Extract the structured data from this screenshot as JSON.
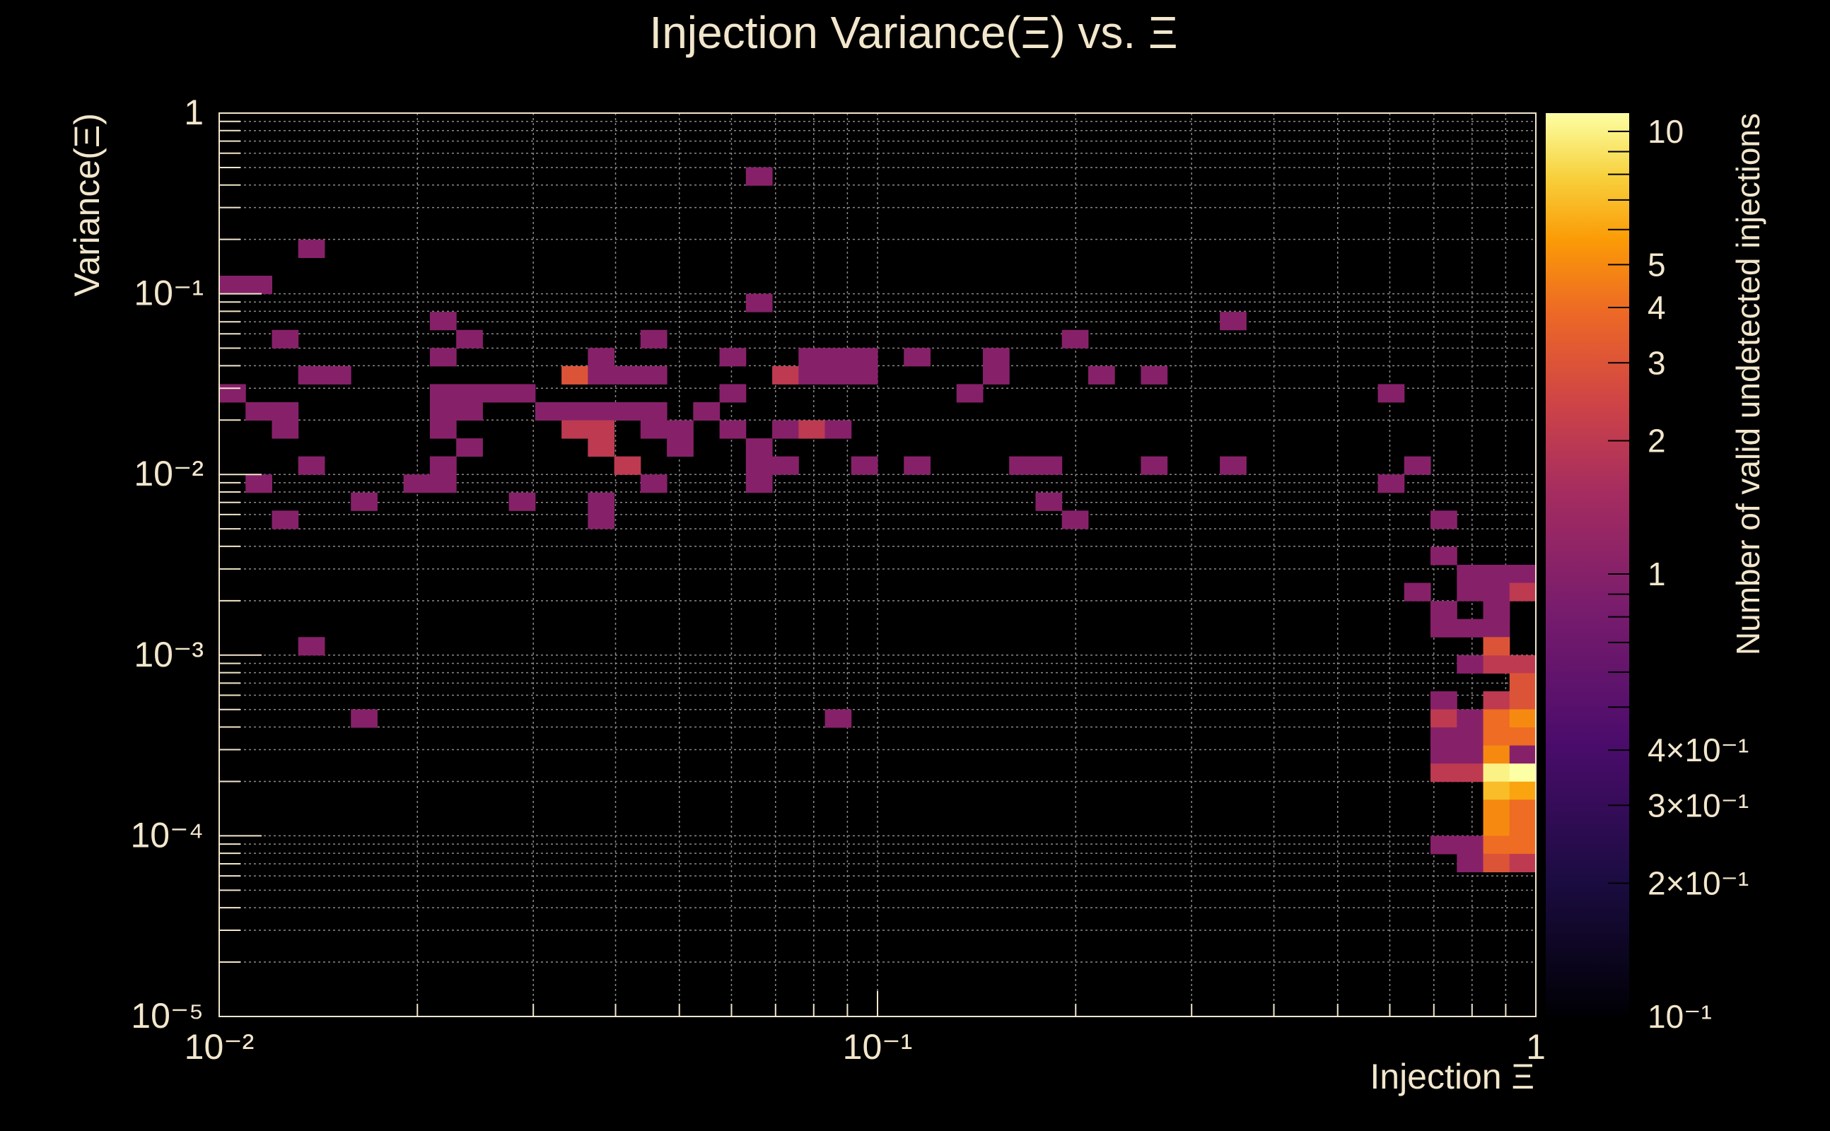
{
  "chart_data": {
    "type": "heatmap",
    "title": "Injection Variance(Ξ) vs. Ξ",
    "xlabel": "Injection Ξ",
    "ylabel": "Variance(Ξ)",
    "zlabel": "Number of valid undetected injections",
    "x_scale": "log",
    "y_scale": "log",
    "z_scale": "log",
    "xlim": [
      0.01,
      1
    ],
    "ylim": [
      1e-05,
      1
    ],
    "zlim": [
      0.1,
      11
    ],
    "grid": true,
    "colormap": "inferno",
    "colors": {
      "background": "#000000",
      "text": "#f2e6cc",
      "grid": "#8a8a8a"
    },
    "bins": {
      "nx": 50,
      "ny": 50
    },
    "x_ticks": [
      {
        "value": 0.01,
        "label": "10⁻²"
      },
      {
        "value": 0.1,
        "label": "10⁻¹"
      },
      {
        "value": 1,
        "label": "1"
      }
    ],
    "y_ticks": [
      {
        "value": 1,
        "label": "1"
      },
      {
        "value": 0.1,
        "label": "10⁻¹"
      },
      {
        "value": 0.01,
        "label": "10⁻²"
      },
      {
        "value": 0.001,
        "label": "10⁻³"
      },
      {
        "value": 0.0001,
        "label": "10⁻⁴"
      },
      {
        "value": 1e-05,
        "label": "10⁻⁵"
      }
    ],
    "z_ticks": [
      {
        "value": 10,
        "label": "10"
      },
      {
        "value": 5,
        "label": "5"
      },
      {
        "value": 4,
        "label": "4"
      },
      {
        "value": 3,
        "label": "3"
      },
      {
        "value": 2,
        "label": "2"
      },
      {
        "value": 1,
        "label": "1"
      },
      {
        "value": 0.4,
        "label": "4×10⁻¹"
      },
      {
        "value": 0.3,
        "label": "3×10⁻¹"
      },
      {
        "value": 0.2,
        "label": "2×10⁻¹"
      },
      {
        "value": 0.1,
        "label": "10⁻¹"
      }
    ],
    "cells": [
      [
        0,
        40,
        1
      ],
      [
        1,
        40,
        1
      ],
      [
        3,
        42,
        1
      ],
      [
        0,
        34,
        1
      ],
      [
        1,
        33,
        1
      ],
      [
        2,
        33,
        1
      ],
      [
        2,
        32,
        1
      ],
      [
        2,
        37,
        1
      ],
      [
        3,
        35,
        1
      ],
      [
        4,
        35,
        1
      ],
      [
        3,
        30,
        1
      ],
      [
        2,
        27,
        1
      ],
      [
        3,
        20,
        1
      ],
      [
        1,
        29,
        1
      ],
      [
        5,
        16,
        1
      ],
      [
        5,
        28,
        1
      ],
      [
        7,
        29,
        1
      ],
      [
        8,
        29,
        1
      ],
      [
        8,
        30,
        1
      ],
      [
        8,
        38,
        1
      ],
      [
        9,
        37,
        1
      ],
      [
        8,
        36,
        1
      ],
      [
        8,
        34,
        1
      ],
      [
        8,
        33,
        1
      ],
      [
        9,
        33,
        1
      ],
      [
        9,
        34,
        1
      ],
      [
        10,
        34,
        1
      ],
      [
        11,
        34,
        1
      ],
      [
        9,
        31,
        1
      ],
      [
        8,
        32,
        1
      ],
      [
        8,
        30,
        1
      ],
      [
        12,
        33,
        1
      ],
      [
        13,
        33,
        1
      ],
      [
        14,
        33,
        1
      ],
      [
        15,
        33,
        1
      ],
      [
        16,
        33,
        1
      ],
      [
        13,
        32,
        2
      ],
      [
        14,
        32,
        2
      ],
      [
        14,
        31,
        2
      ],
      [
        13,
        35,
        3
      ],
      [
        14,
        35,
        1
      ],
      [
        15,
        35,
        1
      ],
      [
        16,
        35,
        1
      ],
      [
        14,
        36,
        1
      ],
      [
        16,
        37,
        1
      ],
      [
        16,
        32,
        1
      ],
      [
        17,
        32,
        1
      ],
      [
        17,
        31,
        1
      ],
      [
        18,
        33,
        1
      ],
      [
        19,
        34,
        1
      ],
      [
        19,
        32,
        1
      ],
      [
        19,
        36,
        1
      ],
      [
        15,
        30,
        2
      ],
      [
        16,
        29,
        1
      ],
      [
        11,
        28,
        1
      ],
      [
        14,
        28,
        1
      ],
      [
        14,
        27,
        1
      ],
      [
        20,
        46,
        1
      ],
      [
        20,
        39,
        1
      ],
      [
        20,
        31,
        1
      ],
      [
        20,
        30,
        1
      ],
      [
        21,
        30,
        1
      ],
      [
        20,
        29,
        1
      ],
      [
        21,
        32,
        1
      ],
      [
        22,
        32,
        2
      ],
      [
        21,
        35,
        2
      ],
      [
        22,
        36,
        1
      ],
      [
        23,
        36,
        1
      ],
      [
        24,
        36,
        1
      ],
      [
        22,
        35,
        1
      ],
      [
        23,
        35,
        1
      ],
      [
        24,
        35,
        1
      ],
      [
        23,
        32,
        1
      ],
      [
        24,
        30,
        1
      ],
      [
        26,
        30,
        1
      ],
      [
        26,
        36,
        1
      ],
      [
        28,
        34,
        1
      ],
      [
        29,
        35,
        1
      ],
      [
        29,
        36,
        1
      ],
      [
        30,
        30,
        1
      ],
      [
        31,
        30,
        1
      ],
      [
        32,
        37,
        1
      ],
      [
        33,
        35,
        1
      ],
      [
        35,
        30,
        1
      ],
      [
        31,
        28,
        1
      ],
      [
        32,
        27,
        1
      ],
      [
        23,
        16,
        1
      ],
      [
        35,
        35,
        1
      ],
      [
        38,
        38,
        1
      ],
      [
        38,
        30,
        1
      ],
      [
        44,
        34,
        1
      ],
      [
        44,
        29,
        1
      ],
      [
        45,
        30,
        1
      ],
      [
        46,
        27,
        1
      ],
      [
        46,
        25,
        1
      ],
      [
        47,
        24,
        1
      ],
      [
        48,
        24,
        1
      ],
      [
        49,
        24,
        1
      ],
      [
        48,
        23,
        1
      ],
      [
        48,
        22,
        1
      ],
      [
        45,
        23,
        1
      ],
      [
        46,
        22,
        1
      ],
      [
        46,
        21,
        1
      ],
      [
        47,
        21,
        1
      ],
      [
        48,
        21,
        1
      ],
      [
        47,
        19,
        1
      ],
      [
        48,
        19,
        2
      ],
      [
        48,
        20,
        3
      ],
      [
        49,
        19,
        2
      ],
      [
        49,
        18,
        3
      ],
      [
        46,
        17,
        1
      ],
      [
        48,
        17,
        2
      ],
      [
        49,
        17,
        3
      ],
      [
        46,
        16,
        2
      ],
      [
        47,
        16,
        1
      ],
      [
        48,
        16,
        4
      ],
      [
        49,
        16,
        5
      ],
      [
        46,
        15,
        1
      ],
      [
        47,
        15,
        1
      ],
      [
        48,
        15,
        4
      ],
      [
        49,
        15,
        4
      ],
      [
        46,
        14,
        1
      ],
      [
        47,
        14,
        1
      ],
      [
        48,
        14,
        5
      ],
      [
        49,
        14,
        1
      ],
      [
        46,
        13,
        2
      ],
      [
        47,
        13,
        2
      ],
      [
        48,
        13,
        10
      ],
      [
        49,
        13,
        11
      ],
      [
        48,
        12,
        7
      ],
      [
        49,
        12,
        6
      ],
      [
        48,
        11,
        5
      ],
      [
        49,
        11,
        4
      ],
      [
        48,
        10,
        5
      ],
      [
        49,
        10,
        4
      ],
      [
        46,
        9,
        1
      ],
      [
        47,
        9,
        1
      ],
      [
        48,
        9,
        4
      ],
      [
        49,
        9,
        4
      ],
      [
        47,
        8,
        1
      ],
      [
        48,
        8,
        3
      ],
      [
        49,
        8,
        2
      ],
      [
        48,
        22,
        1
      ],
      [
        49,
        23,
        2
      ],
      [
        47,
        23,
        1
      ]
    ]
  }
}
